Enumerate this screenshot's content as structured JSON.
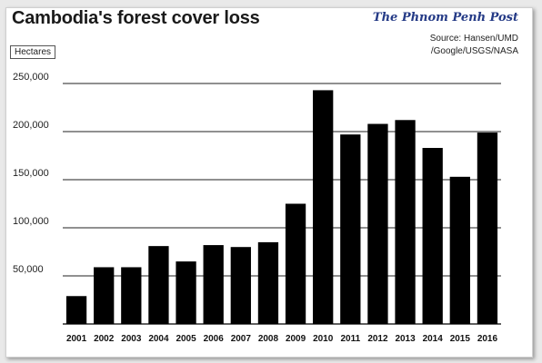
{
  "header": {
    "title": "Cambodia's forest cover loss",
    "brand": "The Phnom Penh Post",
    "source_line1": "Source: Hansen/UMD",
    "source_line2": "/Google/USGS/NASA",
    "unit_label": "Hectares"
  },
  "colors": {
    "bar": "#000000",
    "gridline": "#222222",
    "brand": "#243a86"
  },
  "chart_data": {
    "type": "bar",
    "title": "Cambodia's forest cover loss",
    "ylabel": "Hectares",
    "xlabel": "",
    "ylim": [
      0,
      250000
    ],
    "yticks": [
      50000,
      100000,
      150000,
      200000,
      250000
    ],
    "ytick_labels": [
      "50,000",
      "100,000",
      "150,000",
      "200,000",
      "250,000"
    ],
    "grid": true,
    "categories": [
      "2001",
      "2002",
      "2003",
      "2004",
      "2005",
      "2006",
      "2007",
      "2008",
      "2009",
      "2010",
      "2011",
      "2012",
      "2013",
      "2014",
      "2015",
      "2016"
    ],
    "values": [
      29000,
      59000,
      59000,
      81000,
      65000,
      82000,
      80000,
      85000,
      125000,
      243000,
      197000,
      208000,
      212000,
      183000,
      153000,
      199000
    ]
  }
}
